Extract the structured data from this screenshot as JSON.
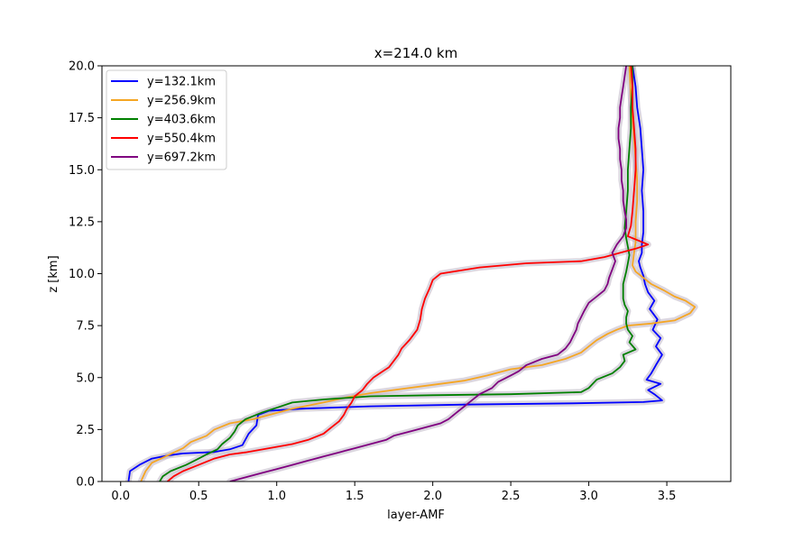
{
  "chart_data": {
    "type": "line",
    "title": "x=214.0 km",
    "xlabel": "layer-AMF",
    "ylabel": "z [km]",
    "xlim": [
      -0.12,
      3.91
    ],
    "ylim": [
      0,
      20
    ],
    "xticks": [
      "0.0",
      "0.5",
      "1.0",
      "1.5",
      "2.0",
      "2.5",
      "3.0",
      "3.5"
    ],
    "yticks": [
      "0.0",
      "2.5",
      "5.0",
      "7.5",
      "10.0",
      "12.5",
      "15.0",
      "17.5",
      "20.0"
    ],
    "grid": false,
    "legend_position": "upper left",
    "uncertainty_band_color": "#bdb4c4",
    "series": [
      {
        "name": "y=132.1km",
        "color": "#0000ff",
        "points": [
          [
            0.05,
            0.0
          ],
          [
            0.06,
            0.5
          ],
          [
            0.12,
            0.8
          ],
          [
            0.2,
            1.1
          ],
          [
            0.3,
            1.25
          ],
          [
            0.4,
            1.35
          ],
          [
            0.6,
            1.42
          ],
          [
            0.7,
            1.55
          ],
          [
            0.78,
            1.75
          ],
          [
            0.82,
            2.3
          ],
          [
            0.87,
            2.7
          ],
          [
            0.88,
            3.2
          ],
          [
            0.95,
            3.4
          ],
          [
            1.15,
            3.5
          ],
          [
            1.6,
            3.62
          ],
          [
            2.2,
            3.7
          ],
          [
            2.9,
            3.76
          ],
          [
            3.35,
            3.82
          ],
          [
            3.47,
            3.9
          ],
          [
            3.42,
            4.2
          ],
          [
            3.38,
            4.4
          ],
          [
            3.46,
            4.7
          ],
          [
            3.37,
            4.9
          ],
          [
            3.4,
            5.2
          ],
          [
            3.43,
            5.6
          ],
          [
            3.47,
            6.1
          ],
          [
            3.43,
            6.5
          ],
          [
            3.46,
            6.9
          ],
          [
            3.41,
            7.3
          ],
          [
            3.44,
            7.8
          ],
          [
            3.39,
            8.3
          ],
          [
            3.42,
            8.7
          ],
          [
            3.38,
            9.1
          ],
          [
            3.36,
            9.5
          ],
          [
            3.35,
            9.9
          ],
          [
            3.33,
            10.3
          ],
          [
            3.32,
            10.6
          ],
          [
            3.34,
            11.0
          ],
          [
            3.34,
            11.4
          ],
          [
            3.35,
            12.0
          ],
          [
            3.35,
            13.0
          ],
          [
            3.34,
            14.0
          ],
          [
            3.35,
            15.0
          ],
          [
            3.34,
            16.0
          ],
          [
            3.33,
            17.0
          ],
          [
            3.31,
            18.0
          ],
          [
            3.3,
            19.0
          ],
          [
            3.28,
            20.0
          ]
        ]
      },
      {
        "name": "y=256.9km",
        "color": "#f5a623",
        "points": [
          [
            0.13,
            0.0
          ],
          [
            0.16,
            0.5
          ],
          [
            0.2,
            0.9
          ],
          [
            0.3,
            1.25
          ],
          [
            0.4,
            1.6
          ],
          [
            0.45,
            1.9
          ],
          [
            0.55,
            2.2
          ],
          [
            0.6,
            2.5
          ],
          [
            0.7,
            2.8
          ],
          [
            0.85,
            3.0
          ],
          [
            0.95,
            3.2
          ],
          [
            1.1,
            3.5
          ],
          [
            1.3,
            3.8
          ],
          [
            1.45,
            4.05
          ],
          [
            1.6,
            4.25
          ],
          [
            1.8,
            4.45
          ],
          [
            2.0,
            4.65
          ],
          [
            2.2,
            4.85
          ],
          [
            2.35,
            5.1
          ],
          [
            2.5,
            5.4
          ],
          [
            2.7,
            5.6
          ],
          [
            2.85,
            5.9
          ],
          [
            2.95,
            6.2
          ],
          [
            3.0,
            6.5
          ],
          [
            3.05,
            6.8
          ],
          [
            3.12,
            7.1
          ],
          [
            3.18,
            7.3
          ],
          [
            3.25,
            7.5
          ],
          [
            3.4,
            7.6
          ],
          [
            3.55,
            7.75
          ],
          [
            3.65,
            8.1
          ],
          [
            3.68,
            8.4
          ],
          [
            3.62,
            8.7
          ],
          [
            3.55,
            8.9
          ],
          [
            3.48,
            9.2
          ],
          [
            3.4,
            9.5
          ],
          [
            3.35,
            9.8
          ],
          [
            3.3,
            10.1
          ],
          [
            3.28,
            10.4
          ],
          [
            3.29,
            11.0
          ],
          [
            3.3,
            11.5
          ],
          [
            3.3,
            12.5
          ],
          [
            3.31,
            13.5
          ],
          [
            3.31,
            14.5
          ],
          [
            3.3,
            15.5
          ],
          [
            3.29,
            16.5
          ],
          [
            3.28,
            17.5
          ],
          [
            3.27,
            18.5
          ],
          [
            3.26,
            20.0
          ]
        ]
      },
      {
        "name": "y=403.6km",
        "color": "#008000",
        "points": [
          [
            0.25,
            0.0
          ],
          [
            0.27,
            0.25
          ],
          [
            0.32,
            0.5
          ],
          [
            0.42,
            0.8
          ],
          [
            0.5,
            1.1
          ],
          [
            0.55,
            1.3
          ],
          [
            0.62,
            1.55
          ],
          [
            0.65,
            1.8
          ],
          [
            0.7,
            2.1
          ],
          [
            0.73,
            2.4
          ],
          [
            0.75,
            2.7
          ],
          [
            0.8,
            3.0
          ],
          [
            0.9,
            3.3
          ],
          [
            1.0,
            3.55
          ],
          [
            1.1,
            3.8
          ],
          [
            1.3,
            3.95
          ],
          [
            1.6,
            4.1
          ],
          [
            2.0,
            4.15
          ],
          [
            2.5,
            4.2
          ],
          [
            2.95,
            4.3
          ],
          [
            3.0,
            4.5
          ],
          [
            3.05,
            4.9
          ],
          [
            3.15,
            5.2
          ],
          [
            3.2,
            5.5
          ],
          [
            3.23,
            5.8
          ],
          [
            3.22,
            6.1
          ],
          [
            3.3,
            6.35
          ],
          [
            3.26,
            6.7
          ],
          [
            3.28,
            7.0
          ],
          [
            3.25,
            7.3
          ],
          [
            3.24,
            7.6
          ],
          [
            3.24,
            7.9
          ],
          [
            3.25,
            8.2
          ],
          [
            3.23,
            8.5
          ],
          [
            3.22,
            8.8
          ],
          [
            3.22,
            9.2
          ],
          [
            3.22,
            9.5
          ],
          [
            3.23,
            9.8
          ],
          [
            3.24,
            10.1
          ],
          [
            3.25,
            10.5
          ],
          [
            3.26,
            10.9
          ],
          [
            3.25,
            11.3
          ],
          [
            3.24,
            11.7
          ],
          [
            3.23,
            12.2
          ],
          [
            3.24,
            13.0
          ],
          [
            3.25,
            14.0
          ],
          [
            3.25,
            15.0
          ],
          [
            3.26,
            16.0
          ],
          [
            3.27,
            17.0
          ],
          [
            3.27,
            18.0
          ],
          [
            3.28,
            19.0
          ],
          [
            3.28,
            20.0
          ]
        ]
      },
      {
        "name": "y=550.4km",
        "color": "#ff0000",
        "points": [
          [
            0.3,
            0.0
          ],
          [
            0.34,
            0.25
          ],
          [
            0.4,
            0.5
          ],
          [
            0.5,
            0.8
          ],
          [
            0.6,
            1.1
          ],
          [
            0.7,
            1.3
          ],
          [
            0.8,
            1.4
          ],
          [
            0.95,
            1.6
          ],
          [
            1.1,
            1.8
          ],
          [
            1.2,
            2.0
          ],
          [
            1.3,
            2.3
          ],
          [
            1.35,
            2.6
          ],
          [
            1.4,
            2.9
          ],
          [
            1.43,
            3.2
          ],
          [
            1.45,
            3.5
          ],
          [
            1.48,
            3.8
          ],
          [
            1.5,
            4.1
          ],
          [
            1.55,
            4.4
          ],
          [
            1.58,
            4.7
          ],
          [
            1.62,
            5.0
          ],
          [
            1.68,
            5.3
          ],
          [
            1.72,
            5.5
          ],
          [
            1.75,
            5.8
          ],
          [
            1.78,
            6.1
          ],
          [
            1.8,
            6.4
          ],
          [
            1.85,
            6.8
          ],
          [
            1.9,
            7.3
          ],
          [
            1.92,
            7.8
          ],
          [
            1.93,
            8.3
          ],
          [
            1.95,
            8.8
          ],
          [
            1.98,
            9.3
          ],
          [
            2.0,
            9.7
          ],
          [
            2.05,
            10.0
          ],
          [
            2.3,
            10.3
          ],
          [
            2.6,
            10.5
          ],
          [
            2.95,
            10.6
          ],
          [
            3.1,
            10.8
          ],
          [
            3.2,
            11.0
          ],
          [
            3.3,
            11.2
          ],
          [
            3.38,
            11.4
          ],
          [
            3.25,
            11.8
          ],
          [
            3.27,
            12.3
          ],
          [
            3.28,
            13.0
          ],
          [
            3.29,
            14.0
          ],
          [
            3.3,
            15.0
          ],
          [
            3.3,
            16.0
          ],
          [
            3.29,
            17.0
          ],
          [
            3.28,
            18.0
          ],
          [
            3.28,
            19.0
          ],
          [
            3.27,
            20.0
          ]
        ]
      },
      {
        "name": "y=697.2km",
        "color": "#800080",
        "points": [
          [
            0.7,
            0.0
          ],
          [
            0.8,
            0.2
          ],
          [
            0.9,
            0.4
          ],
          [
            1.0,
            0.6
          ],
          [
            1.1,
            0.8
          ],
          [
            1.2,
            1.0
          ],
          [
            1.3,
            1.2
          ],
          [
            1.4,
            1.4
          ],
          [
            1.5,
            1.6
          ],
          [
            1.6,
            1.8
          ],
          [
            1.7,
            2.0
          ],
          [
            1.75,
            2.2
          ],
          [
            1.85,
            2.4
          ],
          [
            1.95,
            2.6
          ],
          [
            2.05,
            2.8
          ],
          [
            2.1,
            3.0
          ],
          [
            2.15,
            3.3
          ],
          [
            2.2,
            3.6
          ],
          [
            2.25,
            3.9
          ],
          [
            2.3,
            4.2
          ],
          [
            2.38,
            4.5
          ],
          [
            2.42,
            4.8
          ],
          [
            2.5,
            5.1
          ],
          [
            2.55,
            5.3
          ],
          [
            2.6,
            5.6
          ],
          [
            2.7,
            5.9
          ],
          [
            2.8,
            6.1
          ],
          [
            2.85,
            6.4
          ],
          [
            2.88,
            6.7
          ],
          [
            2.9,
            7.0
          ],
          [
            2.92,
            7.3
          ],
          [
            2.93,
            7.6
          ],
          [
            2.95,
            7.9
          ],
          [
            2.97,
            8.2
          ],
          [
            3.0,
            8.6
          ],
          [
            3.05,
            8.9
          ],
          [
            3.1,
            9.2
          ],
          [
            3.12,
            9.5
          ],
          [
            3.13,
            9.8
          ],
          [
            3.15,
            10.2
          ],
          [
            3.17,
            10.6
          ],
          [
            3.15,
            11.0
          ],
          [
            3.18,
            11.4
          ],
          [
            3.22,
            11.8
          ],
          [
            3.24,
            12.2
          ],
          [
            3.24,
            12.6
          ],
          [
            3.23,
            13.0
          ],
          [
            3.22,
            13.5
          ],
          [
            3.22,
            14.0
          ],
          [
            3.21,
            14.5
          ],
          [
            3.21,
            15.0
          ],
          [
            3.2,
            15.5
          ],
          [
            3.2,
            16.0
          ],
          [
            3.19,
            16.5
          ],
          [
            3.19,
            17.0
          ],
          [
            3.2,
            17.5
          ],
          [
            3.2,
            18.0
          ],
          [
            3.21,
            18.5
          ],
          [
            3.22,
            19.0
          ],
          [
            3.23,
            19.5
          ],
          [
            3.24,
            20.0
          ]
        ]
      }
    ]
  }
}
